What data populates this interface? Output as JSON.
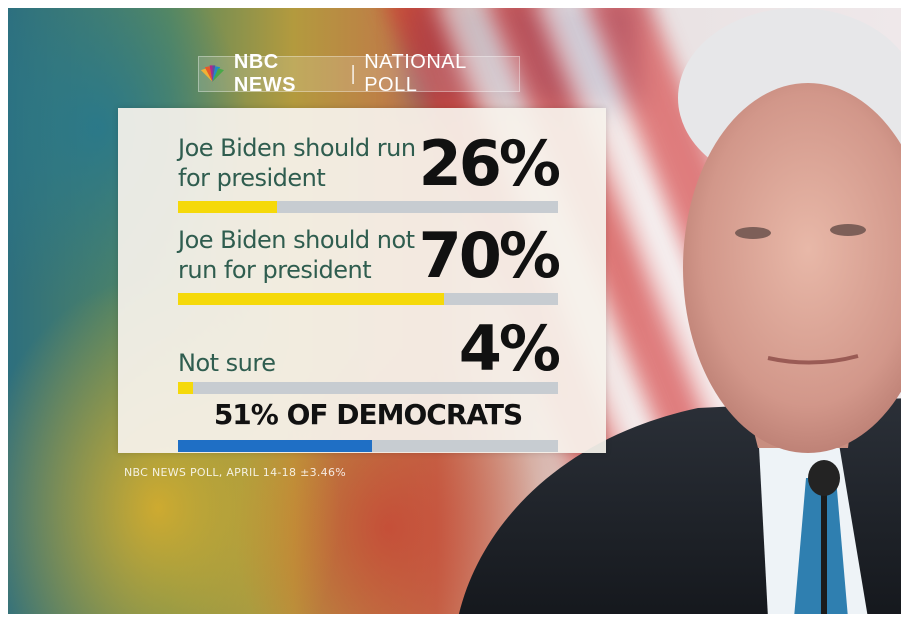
{
  "header": {
    "brand": "NBC NEWS",
    "separator": "|",
    "subtitle": "NATIONAL POLL"
  },
  "chart_data": {
    "type": "bar",
    "title": "",
    "categories": [
      "Joe Biden should run for president",
      "Joe Biden should not run for president",
      "Not sure"
    ],
    "values": [
      26,
      70,
      4
    ],
    "value_labels": [
      "26%",
      "70%",
      "4%"
    ],
    "unit": "%",
    "ylim": [
      0,
      100
    ],
    "bar_color": "#f5d90a",
    "track_color": "#c7ccd1",
    "extra_bar": {
      "label": "51% OF DEMOCRATS",
      "value": 51,
      "color": "#1f6fc5"
    }
  },
  "source_note": "NBC NEWS POLL, APRIL 14-18 ±3.46%"
}
